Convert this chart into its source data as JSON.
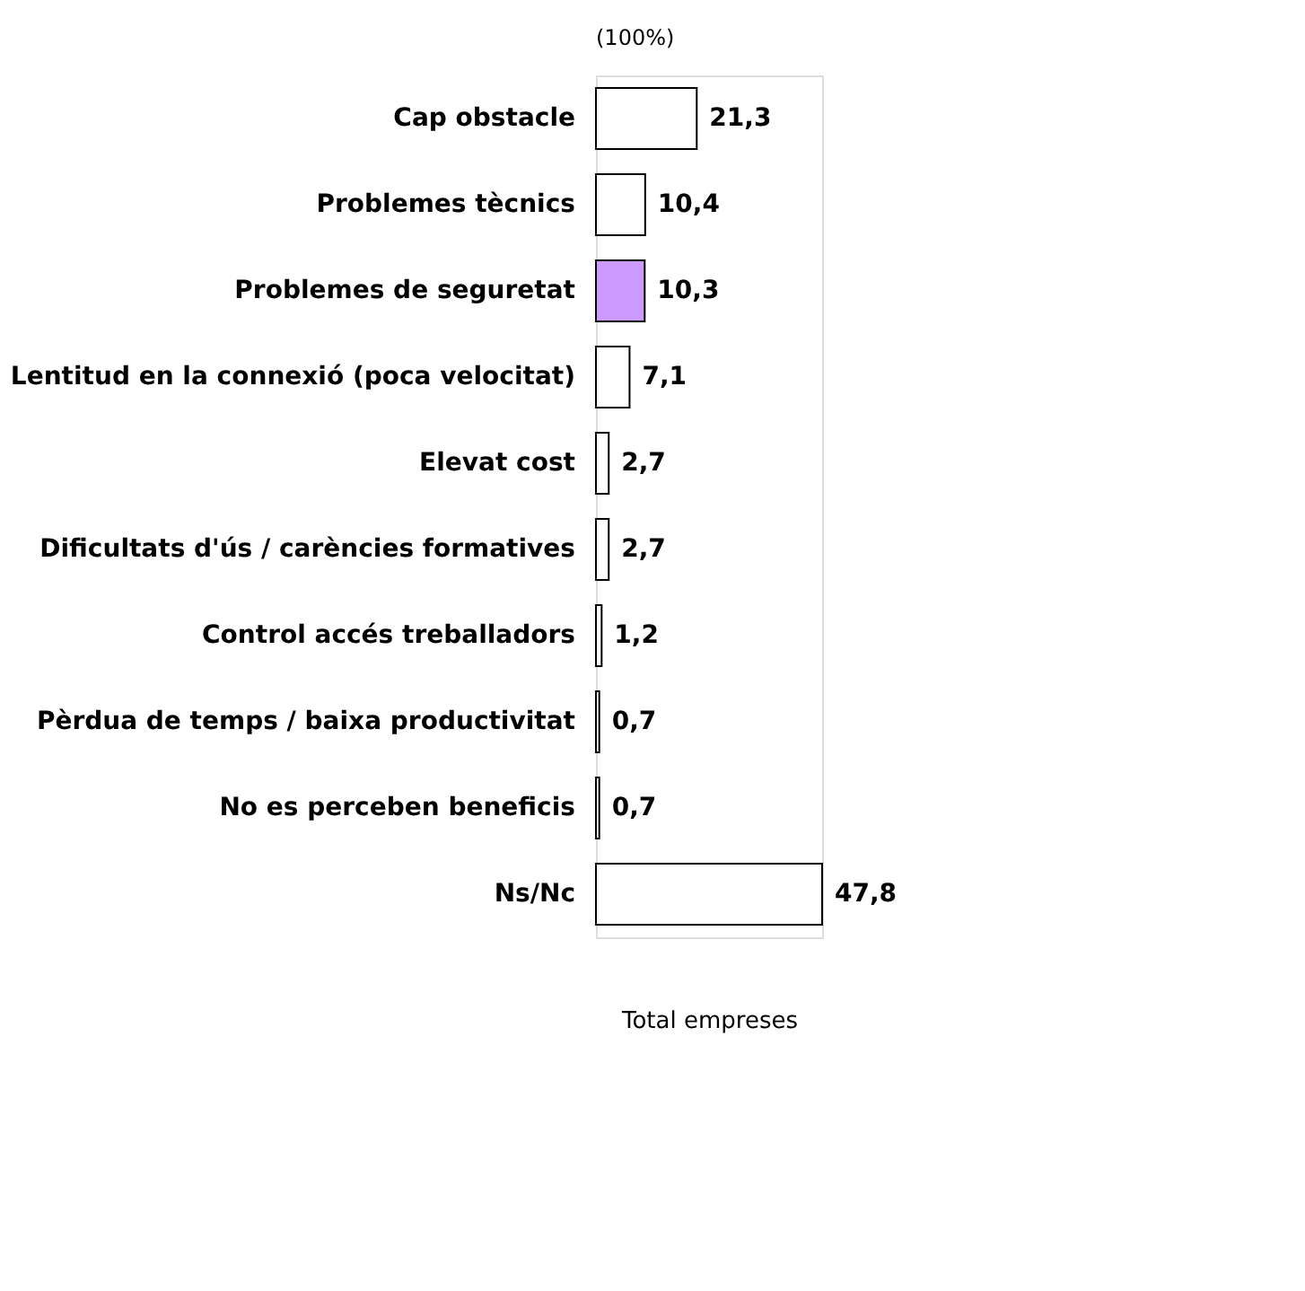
{
  "chart_data": {
    "type": "bar",
    "orientation": "horizontal",
    "title": "(100%)",
    "xlabel": "Total empreses",
    "categories": [
      "Cap obstacle",
      "Problemes tècnics",
      "Problemes de seguretat",
      "Lentitud en la connexió (poca velocitat)",
      "Elevat cost",
      "Dificultats d'ús / carències formatives",
      "Control accés treballadors",
      "Pèrdua de temps / baixa productivitat",
      "No es perceben beneficis",
      "Ns/Nc"
    ],
    "values": [
      21.3,
      10.4,
      10.3,
      7.1,
      2.7,
      2.7,
      1.2,
      0.7,
      0.7,
      47.8
    ],
    "colors": [
      "#ffffff",
      "#ffffff",
      "#cc99ff",
      "#ffffff",
      "#ffffff",
      "#ffffff",
      "#ffffff",
      "#ffffff",
      "#ffffff",
      "#ffffff"
    ],
    "value_labels": [
      "21,3",
      "10,4",
      "10,3",
      "7,1",
      "2,7",
      "2,7",
      "1,2",
      "0,7",
      "0,7",
      "47,8"
    ],
    "grid": false
  }
}
